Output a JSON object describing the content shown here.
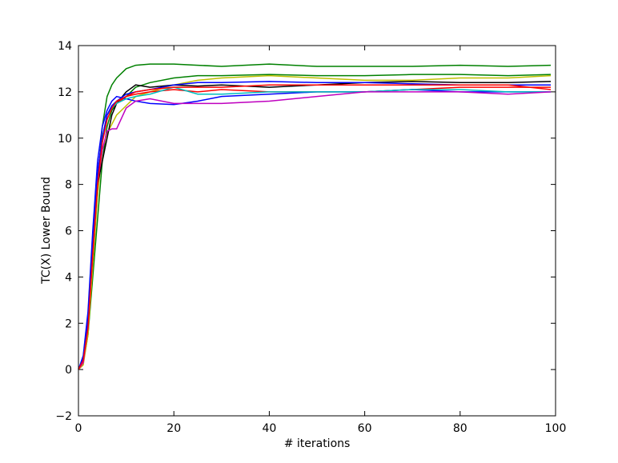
{
  "chart_data": {
    "type": "line",
    "xlabel": "# iterations",
    "ylabel": "TC(X) Lower Bound",
    "x": [
      0,
      1,
      2,
      3,
      4,
      5,
      6,
      7,
      8,
      10,
      12,
      15,
      20,
      25,
      30,
      40,
      50,
      60,
      70,
      80,
      90,
      99
    ],
    "series": [
      {
        "color": "#008000",
        "values": [
          0,
          0.5,
          2,
          5,
          8,
          10.5,
          11.8,
          12.3,
          12.6,
          13.0,
          13.15,
          13.2,
          13.2,
          13.15,
          13.1,
          13.2,
          13.1,
          13.1,
          13.1,
          13.15,
          13.1,
          13.15
        ]
      },
      {
        "color": "#008000",
        "values": [
          0,
          0.3,
          1.5,
          4,
          6.5,
          9,
          10.5,
          11.2,
          11.5,
          11.8,
          12.2,
          12.4,
          12.6,
          12.7,
          12.7,
          12.75,
          12.7,
          12.7,
          12.75,
          12.75,
          12.7,
          12.75
        ]
      },
      {
        "color": "#bfbf00",
        "values": [
          0,
          0.2,
          1.5,
          4.5,
          7.5,
          9.5,
          10.2,
          10.6,
          11.0,
          11.4,
          11.8,
          12.0,
          12.3,
          12.5,
          12.6,
          12.7,
          12.6,
          12.5,
          12.5,
          12.6,
          12.6,
          12.7
        ]
      },
      {
        "color": "#000000",
        "values": [
          0,
          0.5,
          2,
          5,
          8,
          9.0,
          10,
          11,
          11.5,
          12.0,
          12.3,
          12.2,
          12.3,
          12.25,
          12.3,
          12.2,
          12.3,
          12.4,
          12.45,
          12.4,
          12.4,
          12.45
        ]
      },
      {
        "color": "#ff0000",
        "values": [
          0,
          0.4,
          2,
          5.5,
          8.5,
          10,
          11,
          11.3,
          11.5,
          11.8,
          11.9,
          12.0,
          12.1,
          12.0,
          12.1,
          12.0,
          12.0,
          12.0,
          12.1,
          12.2,
          12.2,
          12.2
        ]
      },
      {
        "color": "#0000ff",
        "values": [
          0,
          0.6,
          2.5,
          6,
          9,
          10.5,
          11.2,
          11.6,
          11.8,
          11.7,
          11.6,
          11.5,
          11.45,
          11.6,
          11.8,
          11.9,
          12.0,
          12.0,
          12.1,
          12.0,
          12.0,
          12.0
        ]
      },
      {
        "color": "#00bfbf",
        "values": [
          0,
          0.5,
          2,
          5.5,
          8.5,
          10,
          11,
          11.3,
          11.5,
          11.7,
          11.8,
          11.9,
          12.2,
          11.9,
          11.9,
          12.0,
          12.0,
          12.0,
          12.1,
          12.1,
          12.0,
          12.0
        ]
      },
      {
        "color": "#bf00bf",
        "values": [
          0,
          0.3,
          1.8,
          5,
          8,
          9.5,
          10.3,
          10.4,
          10.4,
          11.3,
          11.6,
          11.7,
          11.5,
          11.5,
          11.5,
          11.6,
          11.8,
          12.0,
          12.0,
          12.0,
          11.9,
          12.0
        ]
      },
      {
        "color": "#0000ff",
        "values": [
          0,
          0.5,
          2,
          5.5,
          8.5,
          10,
          11,
          11.4,
          11.6,
          11.9,
          12.0,
          12.1,
          12.3,
          12.4,
          12.4,
          12.45,
          12.4,
          12.4,
          12.35,
          12.3,
          12.3,
          12.3
        ]
      },
      {
        "color": "#ff0000",
        "values": [
          0,
          0.4,
          1.8,
          5,
          8,
          9.8,
          10.8,
          11.3,
          11.6,
          11.8,
          12.0,
          12.1,
          12.2,
          12.2,
          12.2,
          12.3,
          12.3,
          12.3,
          12.3,
          12.3,
          12.3,
          12.1
        ]
      }
    ],
    "xlim": [
      0,
      100
    ],
    "xticks": [
      0,
      20,
      40,
      60,
      80,
      100
    ],
    "ylim": [
      -2,
      14
    ],
    "yticks": [
      {
        "value": -2,
        "label": "−2"
      },
      0,
      2,
      4,
      6,
      8,
      10,
      12,
      14
    ],
    "grid": false
  }
}
